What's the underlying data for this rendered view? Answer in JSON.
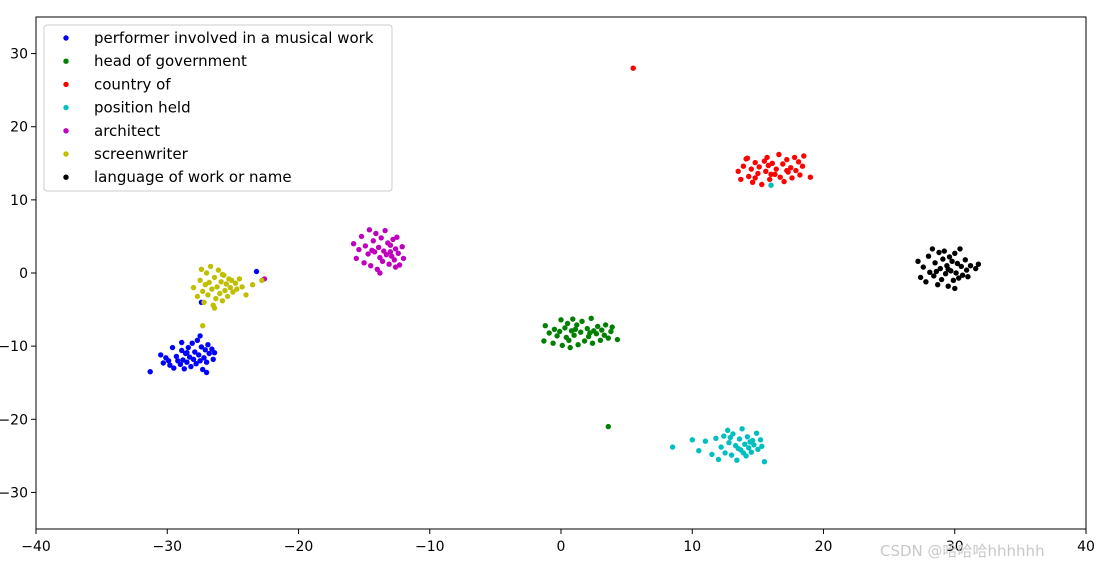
{
  "chart_data": {
    "type": "scatter",
    "xlim": [
      -40,
      40
    ],
    "ylim": [
      -35,
      35
    ],
    "x_ticks": [
      -40,
      -30,
      -20,
      -10,
      0,
      10,
      20,
      30,
      40
    ],
    "y_ticks": [
      -30,
      -20,
      -10,
      0,
      10,
      20,
      30
    ],
    "x_tick_labels": [
      "−40",
      "−30",
      "−20",
      "−10",
      "0",
      "10",
      "20",
      "30",
      "40"
    ],
    "y_tick_labels": [
      "−30",
      "−20",
      "−10",
      "0",
      "10",
      "20",
      "30"
    ],
    "grid": false,
    "legend_position": "top-left",
    "series": [
      {
        "name": "performer involved in a musical work",
        "color": "#0000ff",
        "points": [
          [
            -31.3,
            -13.5
          ],
          [
            -30.5,
            -11.2
          ],
          [
            -30.3,
            -12.3
          ],
          [
            -30.1,
            -11.6
          ],
          [
            -29.8,
            -12.6
          ],
          [
            -29.6,
            -10.2
          ],
          [
            -29.5,
            -13.0
          ],
          [
            -29.3,
            -11.4
          ],
          [
            -29.2,
            -12.0
          ],
          [
            -29.0,
            -12.5
          ],
          [
            -28.9,
            -10.6
          ],
          [
            -28.8,
            -11.9
          ],
          [
            -28.7,
            -13.1
          ],
          [
            -28.6,
            -11.0
          ],
          [
            -28.5,
            -12.2
          ],
          [
            -28.4,
            -10.2
          ],
          [
            -28.3,
            -11.5
          ],
          [
            -28.2,
            -12.8
          ],
          [
            -28.1,
            -9.6
          ],
          [
            -28.0,
            -11.8
          ],
          [
            -27.9,
            -10.8
          ],
          [
            -27.8,
            -12.4
          ],
          [
            -27.7,
            -9.2
          ],
          [
            -27.6,
            -11.2
          ],
          [
            -27.5,
            -12.0
          ],
          [
            -27.4,
            -10.1
          ],
          [
            -27.3,
            -13.2
          ],
          [
            -27.2,
            -11.6
          ],
          [
            -27.1,
            -10.5
          ],
          [
            -27.0,
            -12.2
          ],
          [
            -26.9,
            -9.8
          ],
          [
            -26.8,
            -11.0
          ],
          [
            -26.6,
            -10.4
          ],
          [
            -26.5,
            -11.8
          ],
          [
            -27.5,
            -8.6
          ],
          [
            -26.4,
            -10.9
          ],
          [
            -28.5,
            -10.9
          ],
          [
            -27.0,
            -13.6
          ],
          [
            -27.4,
            -4.0
          ],
          [
            -23.2,
            0.2
          ],
          [
            -29.9,
            -12.0
          ],
          [
            -28.9,
            -9.5
          ]
        ]
      },
      {
        "name": "head of government",
        "color": "#008000",
        "points": [
          [
            -1.3,
            -9.3
          ],
          [
            -1.2,
            -7.2
          ],
          [
            -0.9,
            -8.2
          ],
          [
            -0.6,
            -9.6
          ],
          [
            -0.5,
            -7.7
          ],
          [
            -0.3,
            -8.6
          ],
          [
            0.0,
            -6.4
          ],
          [
            0.1,
            -9.9
          ],
          [
            0.3,
            -7.5
          ],
          [
            0.4,
            -8.8
          ],
          [
            0.5,
            -6.9
          ],
          [
            0.6,
            -9.2
          ],
          [
            0.8,
            -7.9
          ],
          [
            0.9,
            -6.3
          ],
          [
            1.0,
            -8.5
          ],
          [
            1.2,
            -7.1
          ],
          [
            1.3,
            -9.8
          ],
          [
            1.5,
            -8.1
          ],
          [
            1.6,
            -6.6
          ],
          [
            1.8,
            -9.3
          ],
          [
            2.0,
            -7.6
          ],
          [
            2.1,
            -8.7
          ],
          [
            2.3,
            -6.2
          ],
          [
            2.4,
            -9.6
          ],
          [
            2.5,
            -7.9
          ],
          [
            2.7,
            -8.3
          ],
          [
            2.8,
            -7.3
          ],
          [
            3.0,
            -9.2
          ],
          [
            3.1,
            -7.8
          ],
          [
            3.3,
            -8.5
          ],
          [
            3.4,
            -7.1
          ],
          [
            3.6,
            -8.9
          ],
          [
            3.8,
            -8.0
          ],
          [
            3.9,
            -7.4
          ],
          [
            4.3,
            -9.1
          ],
          [
            -0.1,
            -8.0
          ],
          [
            1.1,
            -7.7
          ],
          [
            2.2,
            -8.2
          ],
          [
            3.6,
            -21.0
          ],
          [
            0.7,
            -10.2
          ]
        ]
      },
      {
        "name": "country of",
        "color": "#ff0000",
        "points": [
          [
            5.5,
            28.0
          ],
          [
            13.5,
            13.9
          ],
          [
            13.7,
            12.8
          ],
          [
            13.9,
            14.6
          ],
          [
            14.1,
            15.6
          ],
          [
            14.3,
            13.2
          ],
          [
            14.5,
            14.2
          ],
          [
            14.6,
            12.4
          ],
          [
            14.8,
            15.1
          ],
          [
            15.0,
            13.6
          ],
          [
            15.1,
            14.5
          ],
          [
            15.3,
            12.1
          ],
          [
            15.5,
            15.3
          ],
          [
            15.6,
            13.9
          ],
          [
            15.8,
            14.7
          ],
          [
            15.9,
            12.8
          ],
          [
            16.1,
            15.0
          ],
          [
            16.3,
            13.5
          ],
          [
            16.4,
            14.2
          ],
          [
            16.6,
            16.2
          ],
          [
            16.7,
            13.1
          ],
          [
            16.9,
            14.9
          ],
          [
            17.0,
            12.5
          ],
          [
            17.2,
            15.5
          ],
          [
            17.3,
            13.8
          ],
          [
            17.5,
            14.4
          ],
          [
            17.6,
            13.0
          ],
          [
            17.8,
            15.8
          ],
          [
            17.9,
            14.0
          ],
          [
            18.1,
            15.2
          ],
          [
            18.2,
            13.4
          ],
          [
            18.4,
            14.6
          ],
          [
            18.5,
            16.0
          ],
          [
            19.0,
            13.1
          ],
          [
            14.2,
            15.7
          ],
          [
            15.7,
            15.8
          ],
          [
            17.2,
            14.0
          ],
          [
            16.0,
            13.5
          ],
          [
            14.8,
            13.0
          ]
        ]
      },
      {
        "name": "position held",
        "color": "#00bfbf",
        "points": [
          [
            16.0,
            12.0
          ],
          [
            8.5,
            -23.8
          ],
          [
            10.0,
            -22.8
          ],
          [
            10.5,
            -24.3
          ],
          [
            11.0,
            -23.0
          ],
          [
            11.5,
            -24.8
          ],
          [
            11.8,
            -22.6
          ],
          [
            12.0,
            -25.5
          ],
          [
            12.2,
            -23.8
          ],
          [
            12.4,
            -22.3
          ],
          [
            12.5,
            -24.6
          ],
          [
            12.7,
            -21.5
          ],
          [
            12.8,
            -23.2
          ],
          [
            13.0,
            -24.9
          ],
          [
            13.1,
            -22.0
          ],
          [
            13.3,
            -23.6
          ],
          [
            13.4,
            -25.6
          ],
          [
            13.6,
            -22.7
          ],
          [
            13.7,
            -24.2
          ],
          [
            13.8,
            -21.3
          ],
          [
            14.0,
            -23.4
          ],
          [
            14.1,
            -25.0
          ],
          [
            14.2,
            -22.4
          ],
          [
            14.3,
            -23.9
          ],
          [
            14.5,
            -24.5
          ],
          [
            14.6,
            -22.9
          ],
          [
            14.7,
            -23.5
          ],
          [
            14.9,
            -21.9
          ],
          [
            15.0,
            -24.1
          ],
          [
            15.2,
            -22.8
          ],
          [
            15.3,
            -23.7
          ],
          [
            15.5,
            -25.8
          ],
          [
            13.5,
            -24.0
          ],
          [
            14.4,
            -23.1
          ],
          [
            12.9,
            -22.5
          ],
          [
            13.9,
            -24.6
          ]
        ]
      },
      {
        "name": "architect",
        "color": "#bf00bf",
        "points": [
          [
            -22.6,
            -0.8
          ],
          [
            -15.8,
            4.0
          ],
          [
            -15.6,
            2.0
          ],
          [
            -15.4,
            3.2
          ],
          [
            -15.2,
            5.0
          ],
          [
            -15.0,
            1.4
          ],
          [
            -14.9,
            3.7
          ],
          [
            -14.7,
            2.6
          ],
          [
            -14.6,
            5.9
          ],
          [
            -14.5,
            1.0
          ],
          [
            -14.3,
            4.4
          ],
          [
            -14.2,
            2.9
          ],
          [
            -14.1,
            5.4
          ],
          [
            -14.0,
            0.5
          ],
          [
            -13.9,
            3.5
          ],
          [
            -13.8,
            2.1
          ],
          [
            -13.7,
            4.8
          ],
          [
            -13.6,
            1.6
          ],
          [
            -13.5,
            3.0
          ],
          [
            -13.4,
            5.8
          ],
          [
            -13.3,
            2.5
          ],
          [
            -13.2,
            4.1
          ],
          [
            -13.1,
            1.2
          ],
          [
            -13.0,
            3.8
          ],
          [
            -12.9,
            2.3
          ],
          [
            -12.8,
            4.6
          ],
          [
            -12.7,
            1.8
          ],
          [
            -12.6,
            3.3
          ],
          [
            -12.5,
            4.9
          ],
          [
            -12.4,
            2.7
          ],
          [
            -12.3,
            1.1
          ],
          [
            -12.1,
            3.6
          ],
          [
            -12.0,
            2.0
          ],
          [
            -13.8,
            0.0
          ],
          [
            -14.4,
            3.1
          ],
          [
            -13.0,
            2.9
          ],
          [
            -12.6,
            0.8
          ]
        ]
      },
      {
        "name": "screenwriter",
        "color": "#bfbf00",
        "points": [
          [
            -28.0,
            -2.0
          ],
          [
            -27.7,
            -3.2
          ],
          [
            -27.5,
            -1.0
          ],
          [
            -27.4,
            0.5
          ],
          [
            -27.3,
            -2.5
          ],
          [
            -27.2,
            -4.0
          ],
          [
            -27.1,
            -1.6
          ],
          [
            -27.0,
            0.0
          ],
          [
            -26.9,
            -3.0
          ],
          [
            -26.8,
            -1.3
          ],
          [
            -26.7,
            0.9
          ],
          [
            -26.6,
            -2.2
          ],
          [
            -26.5,
            -4.4
          ],
          [
            -26.4,
            -0.6
          ],
          [
            -26.3,
            -3.5
          ],
          [
            -26.2,
            -1.9
          ],
          [
            -26.1,
            0.4
          ],
          [
            -26.0,
            -2.8
          ],
          [
            -25.9,
            -1.2
          ],
          [
            -25.8,
            -3.8
          ],
          [
            -25.7,
            -0.3
          ],
          [
            -25.6,
            -2.4
          ],
          [
            -25.5,
            -1.5
          ],
          [
            -25.4,
            -3.2
          ],
          [
            -25.3,
            -0.8
          ],
          [
            -25.2,
            -2.0
          ],
          [
            -25.1,
            -1.0
          ],
          [
            -25.0,
            -2.6
          ],
          [
            -24.8,
            -1.4
          ],
          [
            -24.7,
            -2.2
          ],
          [
            -24.5,
            -0.8
          ],
          [
            -24.3,
            -1.9
          ],
          [
            -24.0,
            -3.0
          ],
          [
            -23.5,
            -1.6
          ],
          [
            -22.8,
            -1.0
          ],
          [
            -27.3,
            -7.2
          ],
          [
            -26.4,
            -4.8
          ],
          [
            -25.8,
            -0.2
          ]
        ]
      },
      {
        "name": "language of work or name",
        "color": "#000000",
        "points": [
          [
            27.2,
            1.6
          ],
          [
            27.4,
            -0.6
          ],
          [
            27.6,
            0.8
          ],
          [
            27.8,
            -1.2
          ],
          [
            28.0,
            2.3
          ],
          [
            28.1,
            0.1
          ],
          [
            28.3,
            3.3
          ],
          [
            28.4,
            -0.4
          ],
          [
            28.5,
            1.4
          ],
          [
            28.7,
            -1.6
          ],
          [
            28.8,
            2.8
          ],
          [
            28.9,
            0.6
          ],
          [
            29.0,
            -0.9
          ],
          [
            29.1,
            1.9
          ],
          [
            29.2,
            3.0
          ],
          [
            29.3,
            -0.1
          ],
          [
            29.4,
            1.0
          ],
          [
            29.5,
            -1.8
          ],
          [
            29.6,
            2.2
          ],
          [
            29.7,
            0.3
          ],
          [
            29.8,
            1.6
          ],
          [
            29.9,
            -1.0
          ],
          [
            30.0,
            2.7
          ],
          [
            30.1,
            0.0
          ],
          [
            30.2,
            1.3
          ],
          [
            30.3,
            -0.7
          ],
          [
            30.4,
            3.3
          ],
          [
            30.5,
            0.9
          ],
          [
            30.6,
            -0.3
          ],
          [
            30.8,
            1.8
          ],
          [
            30.9,
            0.4
          ],
          [
            31.0,
            -0.5
          ],
          [
            31.2,
            1.0
          ],
          [
            31.6,
            0.6
          ],
          [
            31.8,
            1.2
          ],
          [
            28.6,
            0.2
          ],
          [
            29.5,
            0.5
          ],
          [
            30.0,
            -2.1
          ]
        ]
      }
    ]
  },
  "watermark": "CSDN @哈哈哈hhhhhh"
}
